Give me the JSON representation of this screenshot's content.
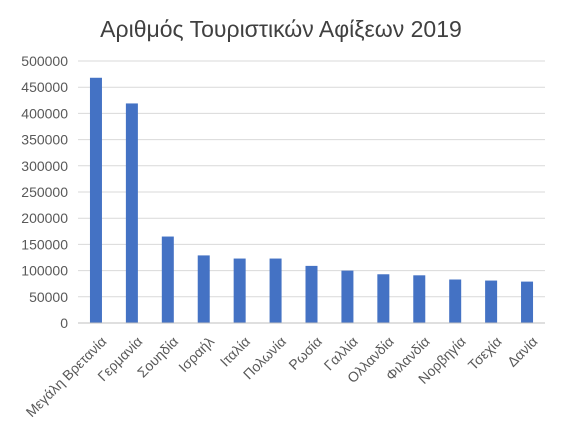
{
  "chart_data": {
    "type": "bar",
    "title": "Αριθμός Τουριστικών Αφίξεων 2019",
    "xlabel": "",
    "ylabel": "",
    "categories": [
      "Μεγάλη Βρετανία",
      "Γερμανία",
      "Σουηδία",
      "Ισραήλ",
      "Ιταλία",
      "Πολωνία",
      "Ρωσία",
      "Γαλλία",
      "Ολλανδία",
      "Φιλανδία",
      "Νορβηγία",
      "Τσεχία",
      "Δανία"
    ],
    "values": [
      468000,
      419000,
      165000,
      129000,
      123000,
      123000,
      109000,
      100000,
      93000,
      91000,
      83000,
      81000,
      79000
    ],
    "ylim": [
      0,
      500000
    ],
    "yticks": [
      "0",
      "50000",
      "100000",
      "150000",
      "200000",
      "250000",
      "300000",
      "350000",
      "400000",
      "450000",
      "500000"
    ],
    "grid": true,
    "legend": "none",
    "bar_color": "#4472c4"
  }
}
